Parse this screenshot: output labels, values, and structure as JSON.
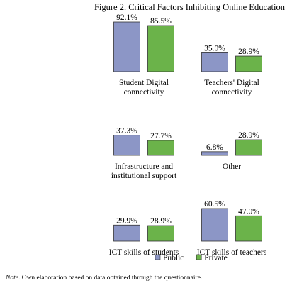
{
  "figure": {
    "title": "Figure 2. Critical Factors Inhibiting Online Education",
    "note_label": "Note",
    "note_text": ". Own elaboration based on data obtained through the questionnaire."
  },
  "chart_data": {
    "type": "bar",
    "title": "Figure 2. Critical Factors Inhibiting Online Education",
    "series_colors": {
      "Public": "#8c96c6",
      "Private": "#6bb34a"
    },
    "legend": [
      "Public",
      "Private"
    ],
    "legend_placement": "bottom-right",
    "grid": false,
    "panels": [
      {
        "category_lines": [
          "Student Digital",
          "connectivity"
        ],
        "values": {
          "Public": 92.1,
          "Private": 85.5
        },
        "labels": {
          "Public": "92.1%",
          "Private": "85.5%"
        }
      },
      {
        "category_lines": [
          "Teachers' Digital",
          "connectivity"
        ],
        "values": {
          "Public": 35.0,
          "Private": 28.9
        },
        "labels": {
          "Public": "35.0%",
          "Private": "28.9%"
        }
      },
      {
        "category_lines": [
          "Infrastructure and",
          "institutional support"
        ],
        "values": {
          "Public": 37.3,
          "Private": 27.7
        },
        "labels": {
          "Public": "37.3%",
          "Private": "27.7%"
        }
      },
      {
        "category_lines": [
          "Other"
        ],
        "values": {
          "Public": 6.8,
          "Private": 28.9
        },
        "labels": {
          "Public": "6.8%",
          "Private": "28.9%"
        }
      },
      {
        "category_lines": [
          "ICT skills of students"
        ],
        "values": {
          "Public": 29.9,
          "Private": 28.9
        },
        "labels": {
          "Public": "29.9%",
          "Private": "28.9%"
        }
      },
      {
        "category_lines": [
          "ICT skills of teachers"
        ],
        "values": {
          "Public": 60.5,
          "Private": 47.0
        },
        "labels": {
          "Public": "60.5%",
          "Private": "47.0%"
        }
      }
    ]
  }
}
